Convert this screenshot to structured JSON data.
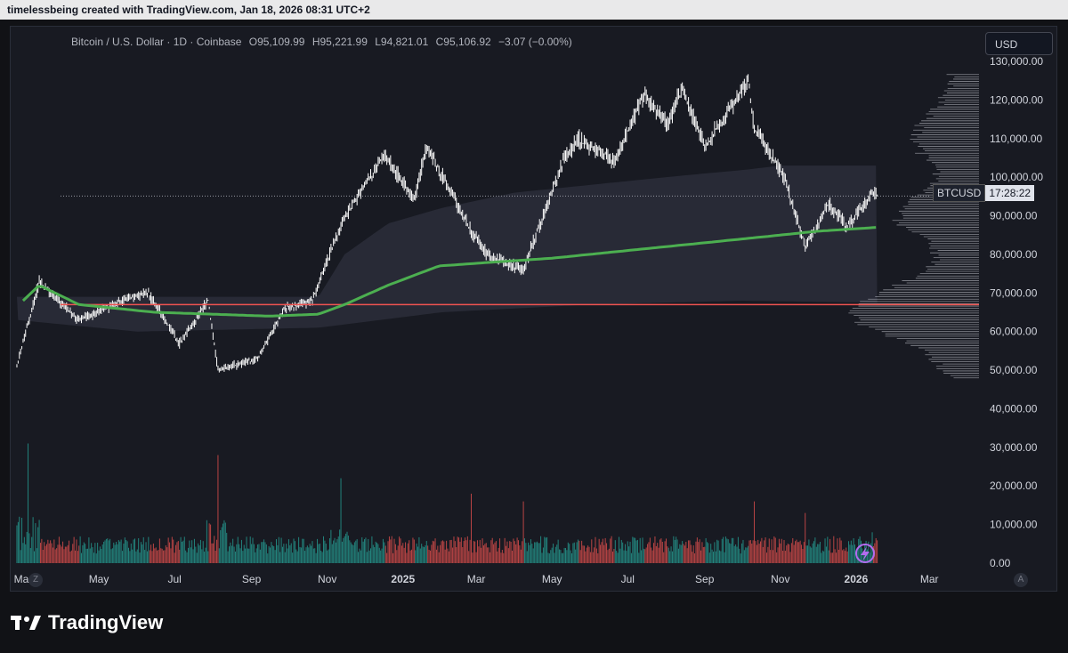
{
  "header": {
    "text": "timelessbeing created with TradingView.com, Jan 18, 2026 08:31 UTC+2"
  },
  "legend": {
    "symbol": "Bitcoin / U.S. Dollar · 1D · Coinbase",
    "open": "O95,109.99",
    "high": "H95,221.99",
    "low": "L94,821.01",
    "close": "C95,106.92",
    "change": "−3.07 (−0.00%)"
  },
  "currency": "USD",
  "symbol_tag": {
    "name": "BTCUSD",
    "countdown": "17:28:22"
  },
  "axis_buttons": {
    "left": "Z",
    "right": "A"
  },
  "brand": {
    "name": "TradingView"
  },
  "colors": {
    "background": "#181a22",
    "candle": "#ffffff",
    "ma": "#4caf50",
    "support_line": "#ef5350",
    "volume_up": "#26a69a",
    "volume_down": "#ef5350",
    "band_fill": "#2b2e3a"
  },
  "chart_data": {
    "type": "line",
    "chart_kind": "candlestick with volume and volume profile",
    "y_ticks": [
      "130,000.00",
      "120,000.00",
      "110,000.00",
      "100,000.00",
      "90,000.00",
      "80,000.00",
      "70,000.00",
      "60,000.00",
      "50,000.00",
      "40,000.00",
      "30,000.00",
      "20,000.00",
      "10,000.00",
      "0.00"
    ],
    "ylim": [
      0,
      130000
    ],
    "x_ticks": [
      "Mar",
      "May",
      "Jul",
      "Sep",
      "Nov",
      "2025",
      "Mar",
      "May",
      "Jul",
      "Sep",
      "Nov",
      "2026",
      "Mar"
    ],
    "xlim": [
      "2024-02-20",
      "2026-04-10"
    ],
    "last_price": 95107,
    "horizontal_line": 67000,
    "series": [
      {
        "name": "Price",
        "x": [
          "2024-02-25",
          "2024-03-14",
          "2024-04-15",
          "2024-05-20",
          "2024-06-10",
          "2024-07-05",
          "2024-07-28",
          "2024-08-05",
          "2024-09-06",
          "2024-09-28",
          "2024-10-20",
          "2024-11-12",
          "2024-12-05",
          "2024-12-17",
          "2025-01-10",
          "2025-01-20",
          "2025-02-25",
          "2025-03-10",
          "2025-04-08",
          "2025-05-10",
          "2025-05-22",
          "2025-06-20",
          "2025-07-14",
          "2025-08-02",
          "2025-08-14",
          "2025-09-01",
          "2025-09-20",
          "2025-10-06",
          "2025-10-11",
          "2025-11-04",
          "2025-11-21",
          "2025-12-10",
          "2025-12-25",
          "2026-01-14",
          "2026-01-18"
        ],
        "y": [
          51000,
          73000,
          63000,
          68000,
          70000,
          57000,
          68000,
          50000,
          53000,
          66000,
          68000,
          88000,
          100000,
          106000,
          94000,
          108000,
          86000,
          80000,
          76000,
          104000,
          110000,
          104000,
          121000,
          114000,
          123000,
          108000,
          117000,
          125000,
          113000,
          100000,
          82000,
          93000,
          87000,
          96000,
          95107
        ]
      },
      {
        "name": "MA",
        "x": [
          "2024-03-01",
          "2024-03-14",
          "2024-04-15",
          "2024-06-15",
          "2024-08-01",
          "2024-09-15",
          "2024-10-25",
          "2024-11-15",
          "2024-12-20",
          "2025-01-30",
          "2025-03-15",
          "2025-05-01",
          "2025-07-01",
          "2025-09-01",
          "2025-11-01",
          "2025-12-01",
          "2026-01-18"
        ],
        "y": [
          68000,
          72000,
          67000,
          65000,
          64500,
          64000,
          64500,
          67000,
          72000,
          77000,
          78000,
          79000,
          81000,
          83000,
          85000,
          86000,
          87000
        ]
      },
      {
        "name": "Band upper",
        "x": [
          "2024-02-25",
          "2024-07-01",
          "2024-10-25",
          "2024-11-15",
          "2024-12-20",
          "2025-02-01",
          "2025-04-01",
          "2025-06-01",
          "2025-08-01",
          "2025-10-06",
          "2025-11-01",
          "2026-01-18"
        ],
        "y": [
          69000,
          69000,
          69000,
          80000,
          88000,
          92000,
          96000,
          98000,
          100000,
          102000,
          103000,
          103000
        ]
      },
      {
        "name": "Band lower",
        "x": [
          "2024-02-25",
          "2024-06-01",
          "2024-10-25",
          "2025-02-01",
          "2025-06-01",
          "2025-10-01",
          "2026-01-18"
        ],
        "y": [
          63000,
          60000,
          61000,
          65000,
          67000,
          68000,
          67500
        ]
      }
    ],
    "volume_peaks": {
      "x": [
        "2024-03-05",
        "2024-08-05",
        "2024-11-12",
        "2025-02-25",
        "2025-04-08",
        "2025-10-11",
        "2025-11-21",
        "2026-01-14"
      ],
      "y": [
        31000,
        28000,
        22000,
        18000,
        16000,
        16000,
        13000,
        8000
      ]
    }
  }
}
